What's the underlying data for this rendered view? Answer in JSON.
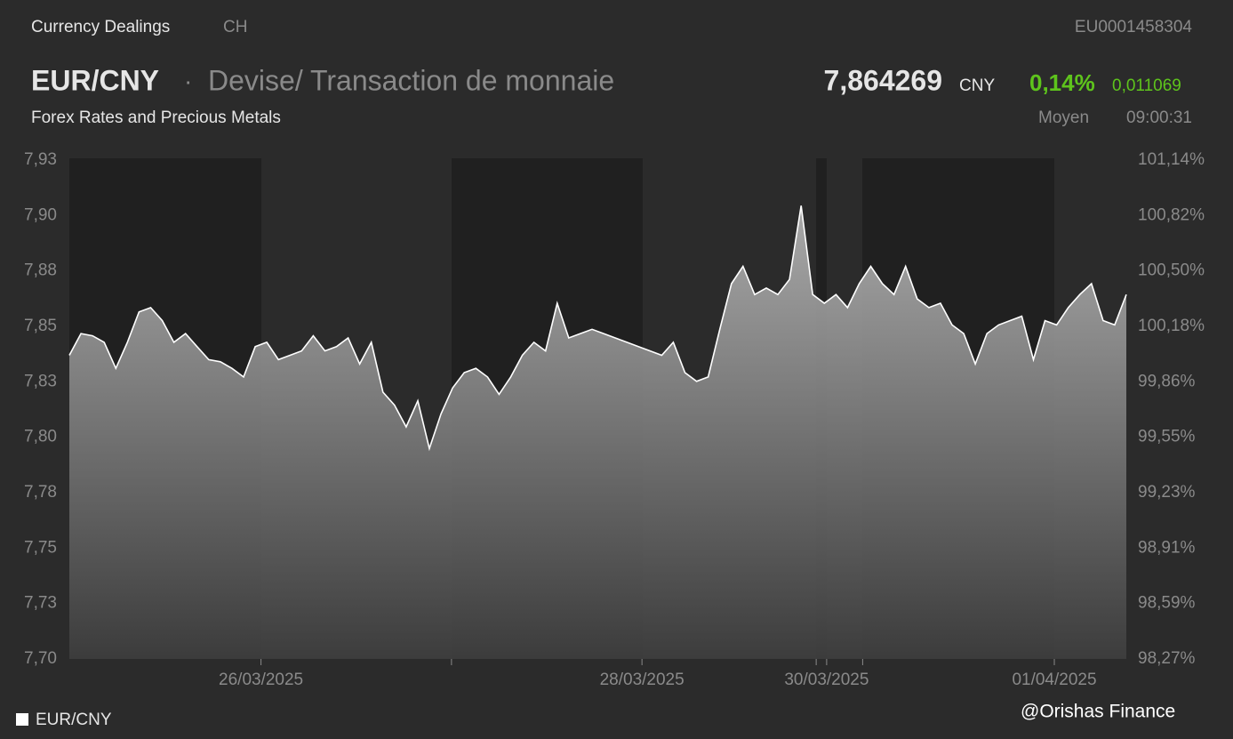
{
  "header": {
    "source": "Currency Dealings",
    "country": "CH",
    "isin": "EU0001458304",
    "symbol": "EUR/CNY",
    "separator": "·",
    "asset_class": "Devise/ Transaction de monnaie",
    "subtitle": "Forex Rates and Precious Metals",
    "price": "7,864269",
    "currency": "CNY",
    "change_pct": "0,14%",
    "change": "0,011069",
    "price_type": "Moyen",
    "time": "09:00:31"
  },
  "chart_data": {
    "type": "area",
    "series": [
      {
        "name": "EUR/CNY",
        "color": "#ffffff",
        "values": [
          7.84,
          7.85,
          7.849,
          7.846,
          7.834,
          7.846,
          7.86,
          7.862,
          7.856,
          7.846,
          7.85,
          7.844,
          7.838,
          7.837,
          7.834,
          7.83,
          7.844,
          7.846,
          7.838,
          7.84,
          7.842,
          7.849,
          7.842,
          7.844,
          7.848,
          7.836,
          7.846,
          7.823,
          7.817,
          7.807,
          7.819,
          7.797,
          7.813,
          7.825,
          7.832,
          7.834,
          7.83,
          7.822,
          7.83,
          7.84,
          7.846,
          7.842,
          7.864,
          7.848,
          7.85,
          7.852,
          7.85,
          7.848,
          7.846,
          7.844,
          7.842,
          7.84,
          7.846,
          7.832,
          7.828,
          7.83,
          7.852,
          7.873,
          7.881,
          7.868,
          7.871,
          7.868,
          7.875,
          7.909,
          7.868,
          7.864,
          7.868,
          7.862,
          7.873,
          7.881,
          7.873,
          7.868,
          7.881,
          7.866,
          7.862,
          7.864,
          7.854,
          7.85,
          7.836,
          7.85,
          7.854,
          7.856,
          7.858,
          7.838,
          7.856,
          7.854,
          7.862,
          7.868,
          7.873,
          7.856,
          7.854,
          7.868
        ]
      }
    ],
    "xlim": [
      0,
      91
    ],
    "xticks": [
      {
        "value": 16.5,
        "label": "26/03/2025"
      },
      {
        "value": 32.9
      },
      {
        "value": 49.3,
        "label": "28/03/2025"
      },
      {
        "value": 64.3
      },
      {
        "value": 65.2,
        "label": "30/03/2025"
      },
      {
        "value": 68.3
      },
      {
        "value": 84.8,
        "label": "01/04/2025"
      }
    ],
    "ylim": [
      7.7,
      7.93
    ],
    "yticks": [
      {
        "value": 7.7,
        "label": "7,70"
      },
      {
        "value": 7.7256,
        "label": "7,73"
      },
      {
        "value": 7.7511,
        "label": "7,75"
      },
      {
        "value": 7.7767,
        "label": "7,78"
      },
      {
        "value": 7.8022,
        "label": "7,80"
      },
      {
        "value": 7.8278,
        "label": "7,83"
      },
      {
        "value": 7.8533,
        "label": "7,85"
      },
      {
        "value": 7.8789,
        "label": "7,88"
      },
      {
        "value": 7.9044,
        "label": "7,90"
      },
      {
        "value": 7.93,
        "label": "7,93"
      }
    ],
    "y2lim": [
      98.27,
      101.14
    ],
    "y2ticks": [
      {
        "value": 98.27,
        "label": "98,27%"
      },
      {
        "value": 98.589,
        "label": "98,59%"
      },
      {
        "value": 98.908,
        "label": "98,91%"
      },
      {
        "value": 99.227,
        "label": "99,23%"
      },
      {
        "value": 99.546,
        "label": "99,55%"
      },
      {
        "value": 99.864,
        "label": "99,86%"
      },
      {
        "value": 100.183,
        "label": "100,18%"
      },
      {
        "value": 100.502,
        "label": "100,50%"
      },
      {
        "value": 100.821,
        "label": "100,82%"
      },
      {
        "value": 101.14,
        "label": "101,14%"
      }
    ],
    "grid": false
  },
  "watermark": "@Orishas Finance"
}
